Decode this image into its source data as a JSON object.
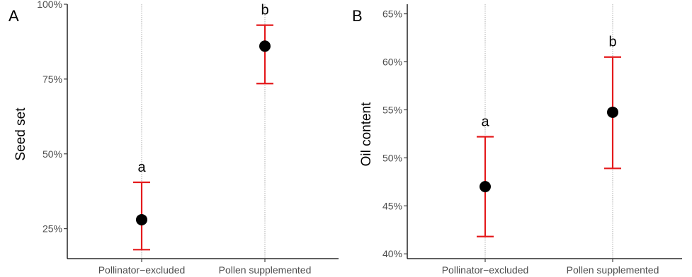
{
  "chart_data": [
    {
      "type": "scatter",
      "panel_label": "A",
      "title": "",
      "xlabel": "",
      "ylabel": "Seed set",
      "categories": [
        "Pollinator−excluded",
        "Pollen supplemented"
      ],
      "values": [
        0.28,
        0.86
      ],
      "error_low": [
        0.18,
        0.735
      ],
      "error_high": [
        0.405,
        0.93
      ],
      "significance": [
        "a",
        "b"
      ],
      "ylim": [
        0.15,
        1.0
      ],
      "yticks": [
        0.25,
        0.5,
        0.75,
        1.0
      ],
      "ytick_labels": [
        "25%",
        "50%",
        "75%",
        "100%"
      ],
      "grid": "vertical dotted lines at categories",
      "point_color": "#000000",
      "errorbar_color": "#e41a1c"
    },
    {
      "type": "scatter",
      "panel_label": "B",
      "title": "",
      "xlabel": "",
      "ylabel": "Oil content",
      "categories": [
        "Pollinator−excluded",
        "Pollen supplemented"
      ],
      "values": [
        0.47,
        0.5475
      ],
      "error_low": [
        0.418,
        0.489
      ],
      "error_high": [
        0.522,
        0.605
      ],
      "significance": [
        "a",
        "b"
      ],
      "ylim": [
        0.395,
        0.66
      ],
      "yticks": [
        0.4,
        0.45,
        0.5,
        0.55,
        0.6,
        0.65
      ],
      "ytick_labels": [
        "40%",
        "45%",
        "50%",
        "55%",
        "60%",
        "65%"
      ],
      "grid": "vertical dotted lines at categories",
      "point_color": "#000000",
      "errorbar_color": "#e41a1c"
    }
  ]
}
